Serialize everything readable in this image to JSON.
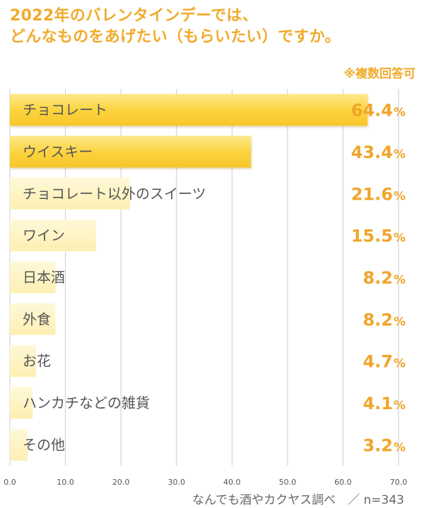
{
  "header": {
    "title_line1": "2022年のバレンタインデーでは、",
    "title_line2": "どんなものをあげたい（もらいたい）ですか。",
    "note": "※複数回答可"
  },
  "footer": {
    "source": "なんでも酒やカクヤス調べ　／ n=343"
  },
  "chart_data": {
    "type": "bar",
    "orientation": "horizontal",
    "title": "2022年のバレンタインデーでは、どんなものをあげたい（もらいたい）ですか。",
    "note": "※複数回答可",
    "categories": [
      "チョコレート",
      "ウイスキー",
      "チョコレート以外のスイーツ",
      "ワイン",
      "日本酒",
      "外食",
      "お花",
      "ハンカチなどの雑貨",
      "その他"
    ],
    "values": [
      64.4,
      43.4,
      21.6,
      15.5,
      8.2,
      8.2,
      4.7,
      4.1,
      3.2
    ],
    "value_labels": [
      "64.4",
      "43.4",
      "21.6",
      "15.5",
      "8.2",
      "8.2",
      "4.7",
      "4.1",
      "3.2"
    ],
    "value_unit": "%",
    "xlim": [
      0,
      70
    ],
    "xticks": [
      0,
      10,
      20,
      30,
      40,
      50,
      60,
      70
    ],
    "xtick_labels": [
      "0.0",
      "10.0",
      "20.0",
      "30.0",
      "40.0",
      "50.0",
      "60.0",
      "70.0"
    ],
    "grid": true,
    "colors": {
      "highlight_bar": "#fbd23c",
      "normal_bar": "#fdf0b6",
      "value_text": "#f0a52a",
      "title_text": "#f0ab2b"
    },
    "highlight_count": 2
  }
}
